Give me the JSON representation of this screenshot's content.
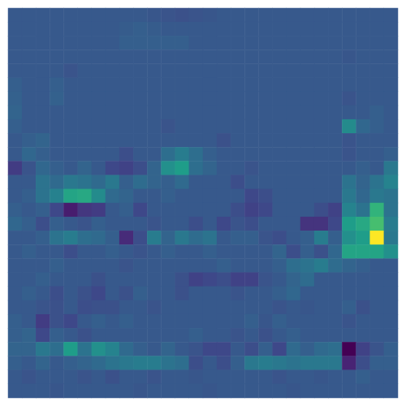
{
  "chart_data": {
    "type": "heatmap",
    "tick_labels": false,
    "values": [
      [
        0.28,
        0.28,
        0.28,
        0.28,
        0.28,
        0.28,
        0.28,
        0.28,
        0.28,
        0.28,
        0.27,
        0.26,
        0.25,
        0.26,
        0.27,
        0.28,
        0.28,
        0.28,
        0.28,
        0.28,
        0.28,
        0.28,
        0.28,
        0.28,
        0.28,
        0.28,
        0.28,
        0.28
      ],
      [
        0.28,
        0.28,
        0.28,
        0.28,
        0.28,
        0.28,
        0.28,
        0.28,
        0.29,
        0.3,
        0.29,
        0.28,
        0.28,
        0.28,
        0.28,
        0.28,
        0.28,
        0.28,
        0.28,
        0.28,
        0.28,
        0.28,
        0.28,
        0.28,
        0.28,
        0.28,
        0.28,
        0.28
      ],
      [
        0.28,
        0.28,
        0.28,
        0.28,
        0.28,
        0.28,
        0.28,
        0.28,
        0.3,
        0.3,
        0.3,
        0.3,
        0.3,
        0.28,
        0.28,
        0.28,
        0.28,
        0.28,
        0.28,
        0.28,
        0.28,
        0.28,
        0.28,
        0.28,
        0.28,
        0.28,
        0.28,
        0.28
      ],
      [
        0.28,
        0.28,
        0.28,
        0.28,
        0.28,
        0.28,
        0.28,
        0.28,
        0.28,
        0.28,
        0.28,
        0.28,
        0.28,
        0.28,
        0.28,
        0.28,
        0.28,
        0.28,
        0.28,
        0.28,
        0.28,
        0.28,
        0.28,
        0.28,
        0.27,
        0.28,
        0.28,
        0.28
      ],
      [
        0.28,
        0.28,
        0.28,
        0.28,
        0.26,
        0.28,
        0.28,
        0.28,
        0.28,
        0.28,
        0.28,
        0.28,
        0.28,
        0.28,
        0.28,
        0.28,
        0.28,
        0.28,
        0.28,
        0.28,
        0.28,
        0.28,
        0.28,
        0.28,
        0.28,
        0.28,
        0.28,
        0.28
      ],
      [
        0.3,
        0.28,
        0.28,
        0.3,
        0.28,
        0.28,
        0.28,
        0.28,
        0.28,
        0.28,
        0.28,
        0.28,
        0.28,
        0.28,
        0.28,
        0.28,
        0.28,
        0.28,
        0.28,
        0.28,
        0.28,
        0.28,
        0.28,
        0.28,
        0.28,
        0.28,
        0.28,
        0.28
      ],
      [
        0.31,
        0.28,
        0.28,
        0.31,
        0.28,
        0.28,
        0.28,
        0.28,
        0.28,
        0.28,
        0.28,
        0.28,
        0.28,
        0.28,
        0.28,
        0.28,
        0.28,
        0.28,
        0.28,
        0.28,
        0.28,
        0.28,
        0.28,
        0.28,
        0.26,
        0.28,
        0.28,
        0.28
      ],
      [
        0.32,
        0.28,
        0.28,
        0.28,
        0.28,
        0.28,
        0.28,
        0.28,
        0.28,
        0.28,
        0.28,
        0.28,
        0.28,
        0.28,
        0.28,
        0.28,
        0.28,
        0.28,
        0.28,
        0.28,
        0.28,
        0.28,
        0.28,
        0.28,
        0.28,
        0.28,
        0.3,
        0.28
      ],
      [
        0.3,
        0.28,
        0.28,
        0.28,
        0.28,
        0.28,
        0.28,
        0.28,
        0.28,
        0.28,
        0.28,
        0.26,
        0.28,
        0.28,
        0.28,
        0.28,
        0.28,
        0.28,
        0.28,
        0.28,
        0.28,
        0.28,
        0.28,
        0.28,
        0.48,
        0.33,
        0.3,
        0.28
      ],
      [
        0.28,
        0.3,
        0.32,
        0.28,
        0.28,
        0.28,
        0.28,
        0.28,
        0.28,
        0.28,
        0.28,
        0.28,
        0.28,
        0.28,
        0.28,
        0.25,
        0.28,
        0.28,
        0.28,
        0.28,
        0.28,
        0.28,
        0.28,
        0.28,
        0.26,
        0.28,
        0.28,
        0.28
      ],
      [
        0.28,
        0.33,
        0.3,
        0.28,
        0.28,
        0.28,
        0.28,
        0.28,
        0.24,
        0.28,
        0.28,
        0.36,
        0.42,
        0.36,
        0.3,
        0.28,
        0.28,
        0.28,
        0.28,
        0.28,
        0.28,
        0.28,
        0.28,
        0.28,
        0.26,
        0.28,
        0.28,
        0.3
      ],
      [
        0.18,
        0.26,
        0.33,
        0.3,
        0.28,
        0.32,
        0.28,
        0.22,
        0.2,
        0.24,
        0.32,
        0.5,
        0.55,
        0.36,
        0.32,
        0.28,
        0.28,
        0.26,
        0.28,
        0.28,
        0.28,
        0.28,
        0.28,
        0.28,
        0.28,
        0.3,
        0.28,
        0.4
      ],
      [
        0.28,
        0.28,
        0.38,
        0.34,
        0.4,
        0.38,
        0.34,
        0.4,
        0.3,
        0.35,
        0.32,
        0.3,
        0.34,
        0.28,
        0.28,
        0.28,
        0.24,
        0.28,
        0.28,
        0.28,
        0.28,
        0.28,
        0.28,
        0.28,
        0.38,
        0.32,
        0.38,
        0.45
      ],
      [
        0.28,
        0.3,
        0.38,
        0.44,
        0.58,
        0.6,
        0.48,
        0.34,
        0.32,
        0.28,
        0.28,
        0.3,
        0.28,
        0.28,
        0.28,
        0.28,
        0.28,
        0.22,
        0.24,
        0.28,
        0.28,
        0.28,
        0.28,
        0.28,
        0.4,
        0.33,
        0.4,
        0.38
      ],
      [
        0.3,
        0.28,
        0.3,
        0.22,
        0.08,
        0.16,
        0.18,
        0.28,
        0.3,
        0.22,
        0.28,
        0.28,
        0.28,
        0.28,
        0.28,
        0.28,
        0.24,
        0.2,
        0.22,
        0.28,
        0.28,
        0.28,
        0.24,
        0.2,
        0.45,
        0.38,
        0.65,
        0.38
      ],
      [
        0.33,
        0.3,
        0.24,
        0.3,
        0.28,
        0.26,
        0.3,
        0.28,
        0.28,
        0.28,
        0.26,
        0.28,
        0.28,
        0.24,
        0.28,
        0.22,
        0.26,
        0.24,
        0.28,
        0.28,
        0.28,
        0.15,
        0.15,
        0.22,
        0.55,
        0.6,
        0.7,
        0.42
      ],
      [
        0.28,
        0.28,
        0.3,
        0.38,
        0.42,
        0.36,
        0.34,
        0.3,
        0.12,
        0.24,
        0.42,
        0.32,
        0.4,
        0.35,
        0.38,
        0.28,
        0.3,
        0.3,
        0.26,
        0.24,
        0.28,
        0.3,
        0.42,
        0.3,
        0.5,
        0.55,
        1.0,
        0.4
      ],
      [
        0.28,
        0.3,
        0.28,
        0.28,
        0.24,
        0.28,
        0.28,
        0.3,
        0.28,
        0.26,
        0.28,
        0.3,
        0.28,
        0.28,
        0.3,
        0.28,
        0.28,
        0.28,
        0.28,
        0.32,
        0.24,
        0.3,
        0.25,
        0.33,
        0.58,
        0.58,
        0.58,
        0.5
      ],
      [
        0.28,
        0.28,
        0.28,
        0.3,
        0.28,
        0.28,
        0.28,
        0.28,
        0.26,
        0.28,
        0.28,
        0.28,
        0.28,
        0.28,
        0.28,
        0.3,
        0.28,
        0.28,
        0.28,
        0.3,
        0.36,
        0.38,
        0.42,
        0.35,
        0.32,
        0.3,
        0.28,
        0.28
      ],
      [
        0.28,
        0.28,
        0.3,
        0.28,
        0.28,
        0.28,
        0.25,
        0.28,
        0.28,
        0.28,
        0.28,
        0.28,
        0.25,
        0.2,
        0.22,
        0.24,
        0.2,
        0.2,
        0.26,
        0.28,
        0.32,
        0.35,
        0.28,
        0.28,
        0.28,
        0.28,
        0.28,
        0.28
      ],
      [
        0.28,
        0.3,
        0.28,
        0.24,
        0.28,
        0.25,
        0.22,
        0.28,
        0.25,
        0.3,
        0.28,
        0.28,
        0.25,
        0.28,
        0.28,
        0.28,
        0.26,
        0.28,
        0.28,
        0.3,
        0.33,
        0.28,
        0.28,
        0.28,
        0.28,
        0.28,
        0.28,
        0.28
      ],
      [
        0.28,
        0.28,
        0.26,
        0.25,
        0.28,
        0.24,
        0.25,
        0.25,
        0.28,
        0.28,
        0.26,
        0.28,
        0.28,
        0.28,
        0.28,
        0.28,
        0.28,
        0.28,
        0.28,
        0.26,
        0.28,
        0.27,
        0.28,
        0.28,
        0.3,
        0.25,
        0.28,
        0.28
      ],
      [
        0.3,
        0.28,
        0.18,
        0.25,
        0.22,
        0.28,
        0.3,
        0.28,
        0.3,
        0.28,
        0.28,
        0.28,
        0.28,
        0.28,
        0.28,
        0.28,
        0.28,
        0.3,
        0.27,
        0.3,
        0.28,
        0.28,
        0.28,
        0.28,
        0.26,
        0.28,
        0.28,
        0.28
      ],
      [
        0.3,
        0.32,
        0.22,
        0.3,
        0.28,
        0.25,
        0.28,
        0.28,
        0.28,
        0.28,
        0.28,
        0.28,
        0.28,
        0.3,
        0.28,
        0.28,
        0.26,
        0.28,
        0.25,
        0.28,
        0.3,
        0.28,
        0.28,
        0.28,
        0.28,
        0.28,
        0.28,
        0.28
      ],
      [
        0.32,
        0.32,
        0.4,
        0.36,
        0.55,
        0.38,
        0.5,
        0.45,
        0.34,
        0.3,
        0.28,
        0.32,
        0.28,
        0.26,
        0.22,
        0.22,
        0.28,
        0.24,
        0.3,
        0.22,
        0.34,
        0.3,
        0.34,
        0.36,
        0.0,
        0.2,
        0.26,
        0.3
      ],
      [
        0.3,
        0.28,
        0.32,
        0.28,
        0.3,
        0.32,
        0.34,
        0.38,
        0.4,
        0.42,
        0.42,
        0.38,
        0.36,
        0.24,
        0.28,
        0.24,
        0.3,
        0.4,
        0.42,
        0.4,
        0.38,
        0.4,
        0.4,
        0.4,
        0.1,
        0.24,
        0.3,
        0.3
      ],
      [
        0.28,
        0.26,
        0.28,
        0.28,
        0.28,
        0.26,
        0.28,
        0.25,
        0.28,
        0.28,
        0.26,
        0.28,
        0.28,
        0.27,
        0.28,
        0.28,
        0.28,
        0.28,
        0.28,
        0.26,
        0.28,
        0.28,
        0.27,
        0.28,
        0.28,
        0.3,
        0.28,
        0.28
      ],
      [
        0.28,
        0.28,
        0.28,
        0.27,
        0.28,
        0.28,
        0.28,
        0.28,
        0.28,
        0.27,
        0.28,
        0.28,
        0.28,
        0.28,
        0.27,
        0.28,
        0.28,
        0.28,
        0.28,
        0.28,
        0.27,
        0.28,
        0.28,
        0.28,
        0.28,
        0.28,
        0.28,
        0.28
      ]
    ]
  }
}
